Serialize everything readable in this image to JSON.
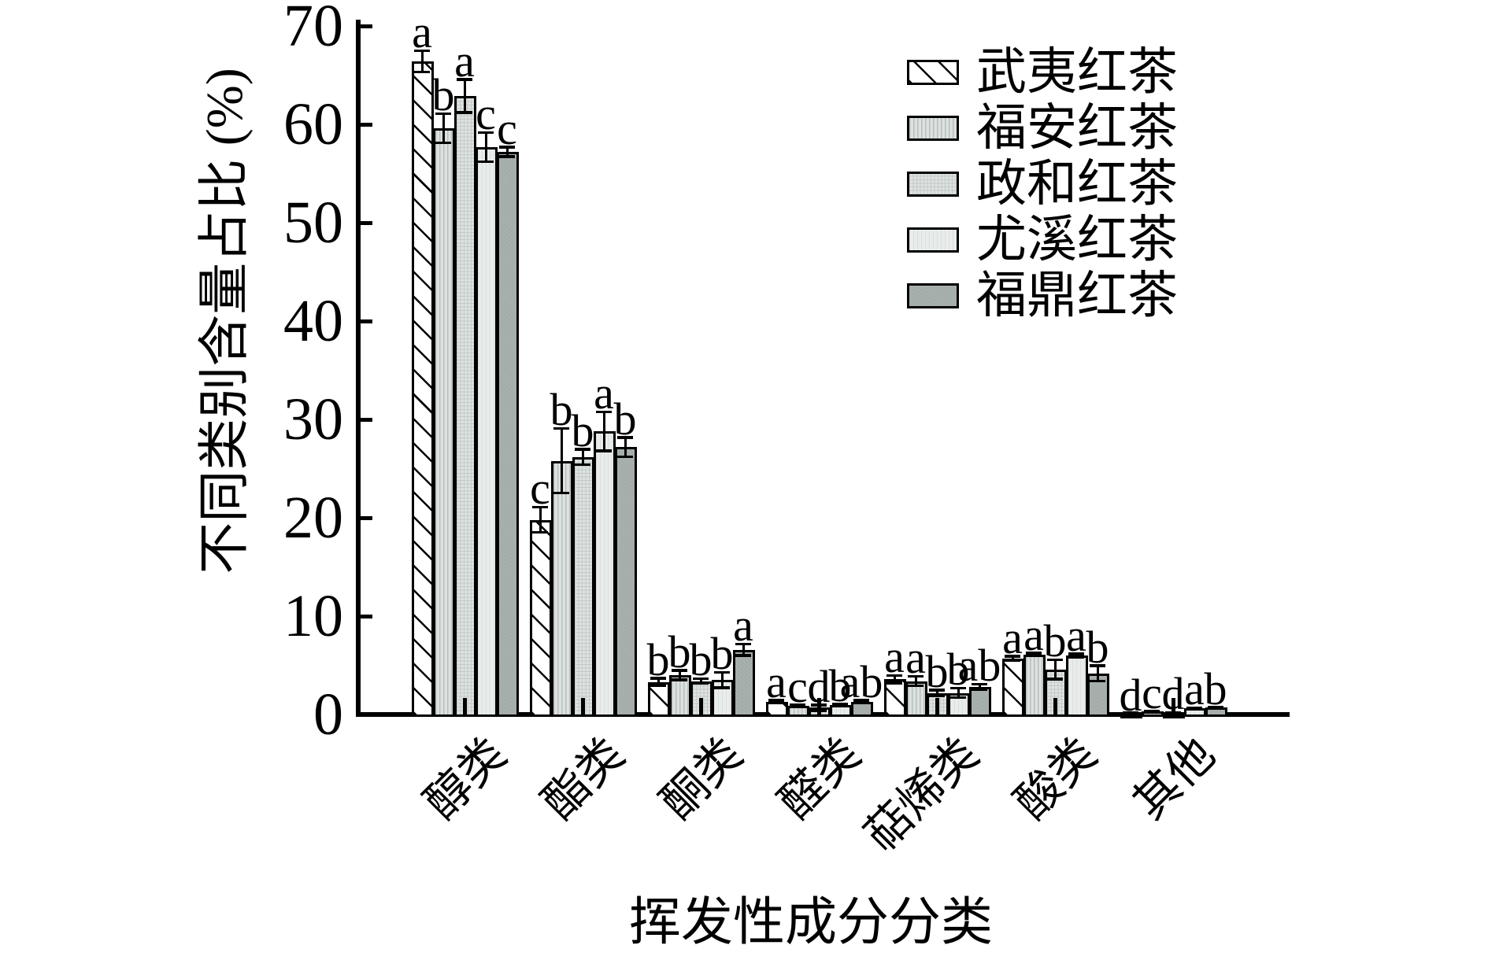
{
  "chart_data": {
    "type": "bar",
    "title": "",
    "xlabel": "挥发性成分分类",
    "ylabel": "不同类别含量占比 (%)",
    "ylim": [
      0,
      70
    ],
    "y_ticks": [
      0,
      10,
      20,
      30,
      40,
      50,
      60,
      70
    ],
    "grid": false,
    "error_bars": true,
    "bar_edge_color": "#000000",
    "legend_position": "upper right",
    "categories": [
      "醇类",
      "酯类",
      "酮类",
      "醛类",
      "萜烯类",
      "酸类",
      "其他"
    ],
    "series": [
      {
        "name": "武夷红茶",
        "pattern": "diagonal-hatch",
        "fill": "#ffffff",
        "values": [
          66.4,
          19.8,
          3.3,
          1.3,
          3.6,
          5.7,
          0.05
        ],
        "errors": [
          1.1,
          1.3,
          0.4,
          0.15,
          0.4,
          0.25,
          0.03
        ],
        "sig_letters": [
          "a",
          "c",
          "b",
          "a",
          "a",
          "a",
          "d"
        ]
      },
      {
        "name": "福安红茶",
        "pattern": "vertical-lines",
        "fill": "#dde1e0",
        "values": [
          59.6,
          25.8,
          4.0,
          0.9,
          3.4,
          6.1,
          0.3
        ],
        "errors": [
          1.5,
          3.3,
          0.5,
          0.1,
          0.5,
          0.15,
          0.06
        ],
        "sig_letters": [
          "b",
          "b",
          "b",
          "c",
          "a",
          "a",
          "c"
        ]
      },
      {
        "name": "政和红茶",
        "pattern": "fine-grid",
        "fill": "#dfe3e2",
        "values": [
          62.9,
          26.2,
          3.4,
          0.7,
          2.2,
          4.6,
          0.1
        ],
        "errors": [
          1.7,
          0.8,
          0.25,
          0.3,
          0.3,
          1.0,
          0.12
        ],
        "sig_letters": [
          "a",
          "b",
          "b",
          "d",
          "b",
          "b",
          "d"
        ]
      },
      {
        "name": "尤溪红茶",
        "pattern": "light-plain",
        "fill": "#e8ecea",
        "values": [
          57.7,
          28.8,
          3.5,
          0.95,
          2.2,
          6.0,
          0.65
        ],
        "errors": [
          1.5,
          2.0,
          0.8,
          0.1,
          0.5,
          0.2,
          0.06
        ],
        "sig_letters": [
          "c",
          "a",
          "b",
          "b",
          "b",
          "a",
          "a"
        ]
      },
      {
        "name": "福鼎红茶",
        "pattern": "dark-gray",
        "fill": "#a9b1af",
        "values": [
          57.2,
          27.2,
          6.6,
          1.3,
          2.8,
          4.2,
          0.7
        ],
        "errors": [
          0.5,
          1.0,
          0.6,
          0.15,
          0.3,
          0.8,
          0.06
        ],
        "sig_letters": [
          "c",
          "b",
          "a",
          "ab",
          "ab",
          "b",
          "b"
        ]
      }
    ]
  }
}
